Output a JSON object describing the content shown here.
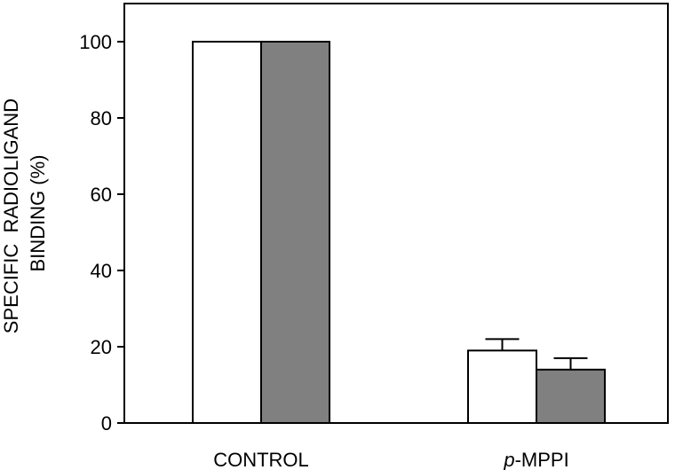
{
  "chart_data": {
    "type": "bar",
    "categories": [
      "CONTROL",
      "p-MPPI"
    ],
    "category_labels": [
      {
        "prefix": "",
        "main": "CONTROL"
      },
      {
        "prefix": "p",
        "main": "-MPPI"
      }
    ],
    "series": [
      {
        "values": [
          100,
          19
        ],
        "errors": [
          null,
          3
        ],
        "color": "#ffffff"
      },
      {
        "values": [
          100,
          14
        ],
        "errors": [
          null,
          3
        ],
        "color": "#808080"
      }
    ],
    "ylabel_lines": [
      "SPECIFIC  RADIOLIGAND",
      "BINDING (%)"
    ],
    "ylim": [
      0,
      110
    ],
    "yticks": [
      0,
      20,
      40,
      60,
      80,
      100
    ],
    "legend": false,
    "grid": false
  }
}
